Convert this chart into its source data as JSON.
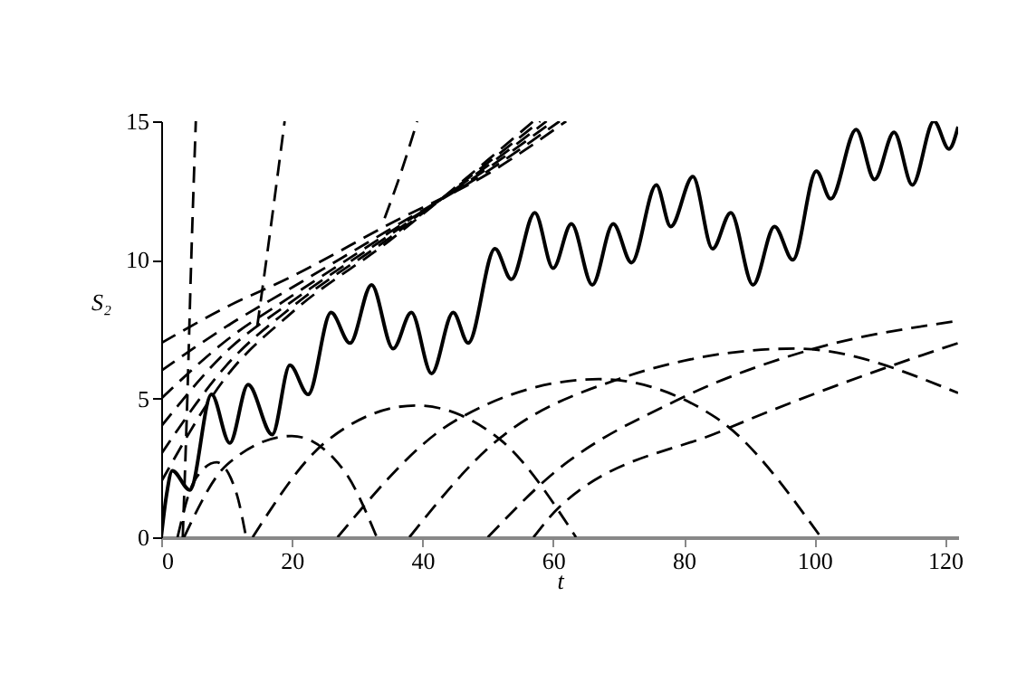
{
  "chart_data": {
    "type": "line",
    "xlabel": "t",
    "ylabel": "S₂",
    "xlim": [
      0,
      122
    ],
    "ylim": [
      0,
      15
    ],
    "xticks": [
      0,
      20,
      40,
      60,
      80,
      100,
      120
    ],
    "yticks": [
      0,
      5,
      10,
      15
    ],
    "grid": false,
    "marker": "none",
    "series": [
      {
        "color": "#000000",
        "line_style": "solid",
        "x": [
          0,
          0.8,
          1.7,
          4.4,
          7.7,
          10.5,
          13.3,
          17,
          19.7,
          22.5,
          26,
          28.9,
          32.2,
          35.5,
          38.3,
          41.4,
          44.7,
          47,
          51.1,
          53.6,
          57.2,
          60,
          62.8,
          66,
          69.2,
          72,
          75.8,
          78,
          81.4,
          84.4,
          87.2,
          90.6,
          93.9,
          96.7,
          100.3,
          102.5,
          106.4,
          109.2,
          112.2,
          115,
          118.3,
          120.6,
          122
        ],
        "values": [
          0,
          1.5,
          2.4,
          1.7,
          5.15,
          3.4,
          5.5,
          3.7,
          6.2,
          5.15,
          8.1,
          7.0,
          9.1,
          6.8,
          8.1,
          5.9,
          8.1,
          7.0,
          10.4,
          9.3,
          11.7,
          9.7,
          11.3,
          9.1,
          11.3,
          9.9,
          12.7,
          11.2,
          13.0,
          10.4,
          11.7,
          9.1,
          11.2,
          10.0,
          13.2,
          12.2,
          14.7,
          12.9,
          14.6,
          12.7,
          15,
          14.0,
          14.8
        ]
      },
      {
        "color": "#000000",
        "line_style": "dashed",
        "x": [
          2.5,
          5,
          8.5,
          11.5,
          13
        ],
        "values": [
          0,
          2,
          2.7,
          1.6,
          0
        ]
      },
      {
        "color": "#000000",
        "line_style": "dashed",
        "x": [
          3.5,
          10,
          20,
          28,
          33
        ],
        "values": [
          0,
          2.6,
          3.65,
          2.4,
          0
        ]
      },
      {
        "color": "#000000",
        "line_style": "dashed",
        "x": [
          14,
          25,
          39,
          52,
          63.5
        ],
        "values": [
          0,
          3.4,
          4.75,
          3.5,
          0
        ]
      },
      {
        "color": "#000000",
        "line_style": "dashed",
        "x": [
          27,
          45,
          67,
          85,
          101
        ],
        "values": [
          0,
          4.2,
          5.7,
          4.3,
          0
        ]
      },
      {
        "color": "#000000",
        "line_style": "dashed",
        "x": [
          38,
          50,
          70,
          97,
          122
        ],
        "values": [
          0,
          3.2,
          5.7,
          6.8,
          5.2
        ]
      },
      {
        "color": "#000000",
        "line_style": "dashed",
        "x": [
          50,
          60,
          78.6,
          100,
          122
        ],
        "values": [
          0,
          2.3,
          4.9,
          6.8,
          7.8
        ]
      },
      {
        "color": "#000000",
        "line_style": "dashed",
        "x": [
          57,
          61,
          86,
          112,
          122
        ],
        "values": [
          0,
          1.1,
          3.85,
          6.2,
          7.0
        ]
      },
      {
        "color": "#000000",
        "line_style": "dashed",
        "x": [
          0,
          10,
          20,
          35,
          50,
          62
        ],
        "values": [
          7,
          8.3,
          9.4,
          11.3,
          13.1,
          15
        ]
      },
      {
        "color": "#000000",
        "line_style": "dashed",
        "x": [
          0,
          10,
          20,
          35,
          50,
          61
        ],
        "values": [
          6,
          7.6,
          9,
          11.1,
          13.2,
          15
        ]
      },
      {
        "color": "#000000",
        "line_style": "dashed",
        "x": [
          0,
          10,
          20,
          35,
          50,
          60
        ],
        "values": [
          5,
          7.1,
          8.7,
          11,
          13.3,
          15
        ]
      },
      {
        "color": "#000000",
        "line_style": "dashed",
        "x": [
          0,
          10,
          20,
          35,
          50,
          59
        ],
        "values": [
          4,
          6.7,
          8.5,
          10.9,
          13.4,
          15
        ]
      },
      {
        "color": "#000000",
        "line_style": "dashed",
        "x": [
          0,
          10,
          20,
          35,
          50,
          58
        ],
        "values": [
          3,
          6.2,
          8.3,
          10.8,
          13.5,
          15
        ]
      },
      {
        "color": "#000000",
        "line_style": "dashed",
        "x": [
          0,
          10,
          20,
          35,
          50,
          57
        ],
        "values": [
          2,
          5.8,
          8.1,
          10.7,
          13.6,
          15
        ]
      },
      {
        "color": "#000000",
        "line_style": "dashed",
        "x": [
          3.3,
          4,
          4.6,
          5.3
        ],
        "values": [
          0,
          5,
          10,
          15
        ]
      },
      {
        "color": "#000000",
        "line_style": "dashed",
        "x": [
          14.7,
          16.1,
          18.9
        ],
        "values": [
          7.6,
          10,
          15
        ]
      },
      {
        "color": "#000000",
        "line_style": "dashed",
        "x": [
          34.2,
          36.5,
          39.2
        ],
        "values": [
          11.5,
          13,
          15
        ]
      }
    ]
  }
}
